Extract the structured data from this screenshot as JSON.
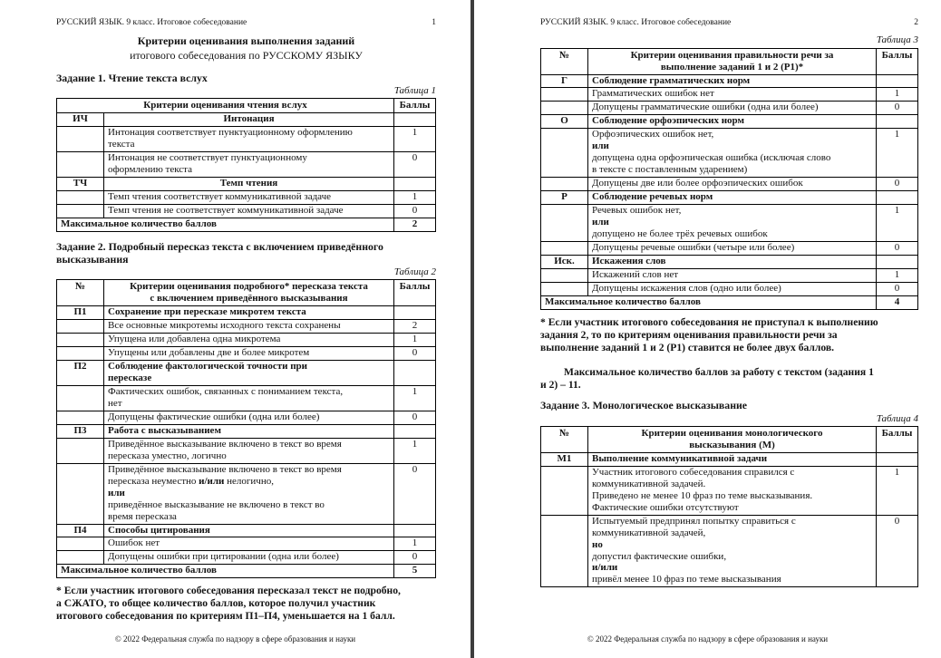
{
  "page1": {
    "header_left": "РУССКИЙ ЯЗЫК. 9 класс. Итоговое собеседование",
    "page_number": "1",
    "title_bold": "Критерии оценивания выполнения заданий",
    "title_regular": "итогового собеседования по РУССКОМУ ЯЗЫКУ",
    "task1_heading": "Задание 1. Чтение текста вслух",
    "table1_caption": "Таблица 1",
    "task2_heading": "Задание 2. Подробный пересказ текста с включением приведённого\nвысказывания",
    "table2_caption": "Таблица 2",
    "footnote": "* Если участник итогового собеседования пересказал текст не подробно,\nа СЖАТО, то общее количество баллов, которое получил участник\nитогового собеседования по критериям П1–П4, уменьшается на 1 балл.",
    "footer": "© 2022 Федеральная служба по надзору в сфере образования и науки"
  },
  "page2": {
    "header_left": "РУССКИЙ ЯЗЫК. 9 класс. Итоговое собеседование",
    "page_number": "2",
    "table3_caption": "Таблица 3",
    "footnote": "* Если участник итогового собеседования не приступал к выполнению\nзадания 2, то по критериям оценивания правильности речи за\nвыполнение заданий 1 и 2 (Р1) ставится не более двух баллов.",
    "max_paragraph": "Максимальное количество баллов за работу с текстом (задания 1\nи 2) – 11.",
    "task3_heading": "Задание 3. Монологическое высказывание",
    "table4_caption": "Таблица 4",
    "footer": "© 2022 Федеральная служба по надзору в сфере образования и науки"
  },
  "tables": {
    "t1": {
      "header": {
        "criteria": "Критерии оценивания чтения вслух",
        "score": "Баллы"
      },
      "rows": [
        {
          "t": "section",
          "code": "ИЧ",
          "text": "Интонация",
          "center": true
        },
        {
          "t": "item",
          "text": "Интонация соответствует пунктуационному оформлению\nтекста",
          "score": "1"
        },
        {
          "t": "item",
          "text": "Интонация не соответствует пунктуационному\nоформлению текста",
          "score": "0"
        },
        {
          "t": "section",
          "code": "ТЧ",
          "text": "Темп чтения",
          "center": true
        },
        {
          "t": "item",
          "text": "Темп чтения соответствует коммуникативной задаче",
          "score": "1"
        },
        {
          "t": "item",
          "text": "Темп чтения не соответствует коммуникативной задаче",
          "score": "0"
        },
        {
          "t": "max",
          "text": "Максимальное количество баллов",
          "score": "2"
        }
      ]
    },
    "t2": {
      "header": {
        "num": "№",
        "criteria": "Критерии оценивания подробного* пересказа текста\nс включением приведённого высказывания",
        "score": "Баллы"
      },
      "rows": [
        {
          "t": "section",
          "code": "П1",
          "text": "Сохранение при пересказе микротем текста"
        },
        {
          "t": "item",
          "text": "Все основные микротемы исходного текста сохранены",
          "score": "2"
        },
        {
          "t": "item",
          "text": "Упущена или добавлена одна микротема",
          "score": "1"
        },
        {
          "t": "item",
          "text": "Упущены или добавлены две и более микротем",
          "score": "0"
        },
        {
          "t": "section",
          "code": "П2",
          "text": "Соблюдение фактологической точности при\nпересказе"
        },
        {
          "t": "item",
          "text": "Фактических ошибок, связанных с пониманием текста,\nнет",
          "score": "1"
        },
        {
          "t": "item",
          "text": "Допущены фактические ошибки (одна или более)",
          "score": "0"
        },
        {
          "t": "section",
          "code": "П3",
          "text": "Работа с высказыванием"
        },
        {
          "t": "item",
          "text": "Приведённое высказывание включено в текст во время\nпересказа уместно, логично",
          "score": "1"
        },
        {
          "t": "item",
          "text": "Приведённое высказывание включено в текст во время\nпересказа неуместно **и/или** нелогично,\n**или**\nприведённое высказывание не включено в текст во\nвремя пересказа",
          "score": "0"
        },
        {
          "t": "section",
          "code": "П4",
          "text": "Способы цитирования"
        },
        {
          "t": "item",
          "text": "Ошибок нет",
          "score": "1"
        },
        {
          "t": "item",
          "text": "Допущены ошибки при цитировании (одна или более)",
          "score": "0"
        },
        {
          "t": "max",
          "text": "Максимальное количество баллов",
          "score": "5"
        }
      ]
    },
    "t3": {
      "header": {
        "num": "№",
        "criteria": "Критерии оценивания правильности речи за\nвыполнение заданий 1 и 2 (Р1)*",
        "score": "Баллы"
      },
      "rows": [
        {
          "t": "section",
          "code": "Г",
          "text": "Соблюдение грамматических норм"
        },
        {
          "t": "item",
          "text": "Грамматических ошибок нет",
          "score": "1"
        },
        {
          "t": "item",
          "text": "Допущены грамматические ошибки (одна или более)",
          "score": "0"
        },
        {
          "t": "section",
          "code": "О",
          "text": "Соблюдение орфоэпических норм"
        },
        {
          "t": "item",
          "text": "Орфоэпических ошибок нет,\n**или**\nдопущена одна орфоэпическая ошибка (исключая слово\nв тексте с поставленным ударением)",
          "score": "1"
        },
        {
          "t": "item",
          "text": "Допущены две или более орфоэпических ошибок",
          "score": "0"
        },
        {
          "t": "section",
          "code": "Р",
          "text": "Соблюдение речевых норм"
        },
        {
          "t": "item",
          "text": "Речевых ошибок нет,\n**или**\nдопущено не более трёх речевых ошибок",
          "score": "1"
        },
        {
          "t": "item",
          "text": "Допущены речевые ошибки (четыре или более)",
          "score": "0"
        },
        {
          "t": "section",
          "code": "Иск.",
          "text": "Искажения слов"
        },
        {
          "t": "item",
          "text": "Искажений слов нет",
          "score": "1"
        },
        {
          "t": "item",
          "text": "Допущены искажения слов (одно или более)",
          "score": "0"
        },
        {
          "t": "max",
          "text": "Максимальное количество баллов",
          "score": "4"
        }
      ]
    },
    "t4": {
      "header": {
        "num": "№",
        "criteria": "Критерии оценивания монологического\nвысказывания (М)",
        "score": "Баллы"
      },
      "rows": [
        {
          "t": "section",
          "code": "М1",
          "text": "Выполнение коммуникативной задачи"
        },
        {
          "t": "item",
          "text": "Участник итогового собеседования справился с\nкоммуникативной задачей.\nПриведено не менее 10 фраз по теме высказывания.\nФактические ошибки отсутствуют",
          "score": "1"
        },
        {
          "t": "item",
          "text": "Испытуемый предпринял попытку справиться с\nкоммуникативной задачей,\n**но**\nдопустил фактические ошибки,\n**и/или**\nпривёл менее 10 фраз по теме высказывания",
          "score": "0"
        }
      ]
    }
  }
}
